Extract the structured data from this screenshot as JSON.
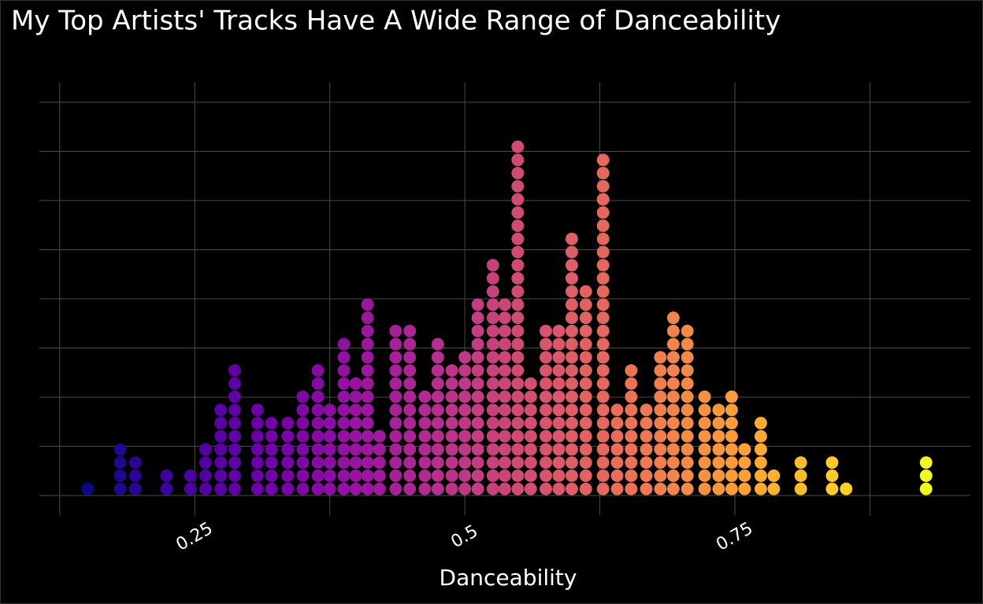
{
  "chart_data": {
    "type": "dotplot",
    "title": "My Top Artists' Tracks Have A Wide Range of Danceability",
    "x_label": "Danceability",
    "x": [
      0.151,
      0.181,
      0.195,
      0.224,
      0.246,
      0.26,
      0.274,
      0.287,
      0.308,
      0.321,
      0.336,
      0.35,
      0.364,
      0.375,
      0.388,
      0.399,
      0.41,
      0.421,
      0.436,
      0.449,
      0.463,
      0.475,
      0.488,
      0.5,
      0.512,
      0.526,
      0.537,
      0.549,
      0.561,
      0.575,
      0.587,
      0.599,
      0.612,
      0.628,
      0.641,
      0.654,
      0.668,
      0.681,
      0.693,
      0.706,
      0.722,
      0.735,
      0.747,
      0.759,
      0.774,
      0.786,
      0.811,
      0.84,
      0.853,
      0.927
    ],
    "values": [
      1,
      4,
      3,
      2,
      2,
      4,
      7,
      10,
      7,
      6,
      6,
      8,
      10,
      7,
      12,
      9,
      15,
      5,
      13,
      13,
      8,
      12,
      10,
      11,
      15,
      18,
      15,
      27,
      9,
      13,
      13,
      20,
      16,
      26,
      7,
      10,
      7,
      11,
      14,
      13,
      8,
      7,
      8,
      4,
      6,
      2,
      3,
      3,
      1,
      3
    ],
    "binwidth": 0.0122,
    "palette": [
      "#0d0887",
      "#46039f",
      "#7201a8",
      "#9c179e",
      "#bd3786",
      "#d8576b",
      "#ed7953",
      "#fb9f3a",
      "#fdca26",
      "#f0f921"
    ],
    "xlim": [
      0.112,
      0.968
    ],
    "xticks": [
      0.25,
      0.5,
      {
        "value": 0.75,
        "label": "0.75"
      }
    ],
    "xminor_ticks": [
      0.125,
      0.375,
      0.625,
      0.875
    ],
    "ylim": [
      -0.05,
      1.05
    ],
    "yticks": [
      0,
      0.125,
      0.25,
      0.375,
      0.5,
      0.625,
      0.75,
      0.875,
      1
    ],
    "grid": true
  }
}
